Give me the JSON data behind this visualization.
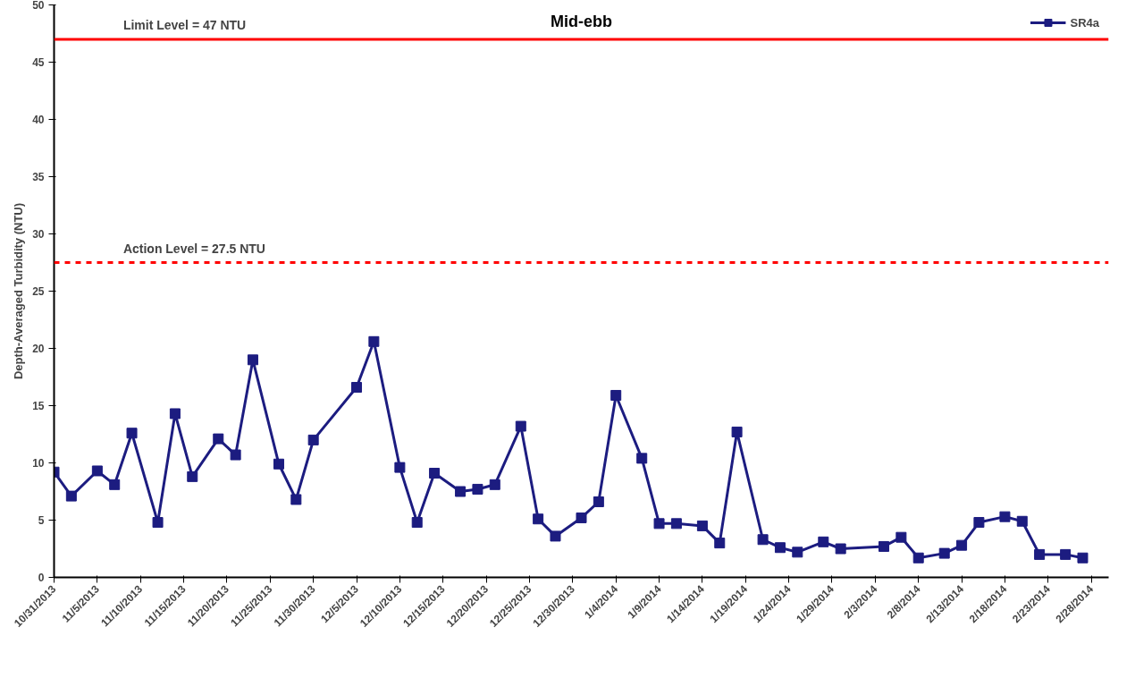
{
  "chart_data": {
    "type": "line",
    "title": "Mid-ebb",
    "ylabel": "Depth-Averaged Turbidity (NTU)",
    "x": [
      "2013-10-31",
      "2013-11-02",
      "2013-11-05",
      "2013-11-07",
      "2013-11-09",
      "2013-11-12",
      "2013-11-14",
      "2013-11-16",
      "2013-11-19",
      "2013-11-21",
      "2013-11-23",
      "2013-11-26",
      "2013-11-28",
      "2013-11-30",
      "2013-12-05",
      "2013-12-07",
      "2013-12-10",
      "2013-12-12",
      "2013-12-14",
      "2013-12-17",
      "2013-12-19",
      "2013-12-21",
      "2013-12-24",
      "2013-12-26",
      "2013-12-28",
      "2013-12-31",
      "2014-01-02",
      "2014-01-04",
      "2014-01-07",
      "2014-01-09",
      "2014-01-11",
      "2014-01-14",
      "2014-01-16",
      "2014-01-18",
      "2014-01-21",
      "2014-01-23",
      "2014-01-25",
      "2014-01-28",
      "2014-01-30",
      "2014-02-04",
      "2014-02-06",
      "2014-02-08",
      "2014-02-11",
      "2014-02-13",
      "2014-02-15",
      "2014-02-18",
      "2014-02-20",
      "2014-02-22",
      "2014-02-25",
      "2014-02-27"
    ],
    "series": [
      {
        "name": "SR4a",
        "color": "#1c1c80",
        "values": [
          9.2,
          7.1,
          9.3,
          8.1,
          12.6,
          4.8,
          14.3,
          8.8,
          12.1,
          10.7,
          19.0,
          9.9,
          6.8,
          12.0,
          16.6,
          20.6,
          9.6,
          4.8,
          9.1,
          7.5,
          7.7,
          8.1,
          13.2,
          5.1,
          3.6,
          5.2,
          6.6,
          15.9,
          10.4,
          4.7,
          4.7,
          4.5,
          3.0,
          12.7,
          3.3,
          2.6,
          2.2,
          3.1,
          2.5,
          2.7,
          3.5,
          1.7,
          2.1,
          2.8,
          4.8,
          5.3,
          4.9,
          2.0,
          2.0,
          1.7
        ]
      }
    ],
    "xlim": [
      "2013-10-31",
      "2014-03-02"
    ],
    "xticks": [
      {
        "value": "2013-10-31",
        "label": "10/31/2013"
      },
      {
        "value": "2013-11-05",
        "label": "11/5/2013"
      },
      {
        "value": "2013-11-10",
        "label": "11/10/2013"
      },
      {
        "value": "2013-11-15",
        "label": "11/15/2013"
      },
      {
        "value": "2013-11-20",
        "label": "11/20/2013"
      },
      {
        "value": "2013-11-25",
        "label": "11/25/2013"
      },
      {
        "value": "2013-11-30",
        "label": "11/30/2013"
      },
      {
        "value": "2013-12-05",
        "label": "12/5/2013"
      },
      {
        "value": "2013-12-10",
        "label": "12/10/2013"
      },
      {
        "value": "2013-12-15",
        "label": "12/15/2013"
      },
      {
        "value": "2013-12-20",
        "label": "12/20/2013"
      },
      {
        "value": "2013-12-25",
        "label": "12/25/2013"
      },
      {
        "value": "2013-12-30",
        "label": "12/30/2013"
      },
      {
        "value": "2014-01-04",
        "label": "1/4/2014"
      },
      {
        "value": "2014-01-09",
        "label": "1/9/2014"
      },
      {
        "value": "2014-01-14",
        "label": "1/14/2014"
      },
      {
        "value": "2014-01-19",
        "label": "1/19/2014"
      },
      {
        "value": "2014-01-24",
        "label": "1/24/2014"
      },
      {
        "value": "2014-01-29",
        "label": "1/29/2014"
      },
      {
        "value": "2014-02-03",
        "label": "2/3/2014"
      },
      {
        "value": "2014-02-08",
        "label": "2/8/2014"
      },
      {
        "value": "2014-02-13",
        "label": "2/13/2014"
      },
      {
        "value": "2014-02-18",
        "label": "2/18/2014"
      },
      {
        "value": "2014-02-23",
        "label": "2/23/2014"
      },
      {
        "value": "2014-02-28",
        "label": "2/28/2014"
      }
    ],
    "ylim": [
      0,
      50
    ],
    "yticks": [
      0,
      5,
      10,
      15,
      20,
      25,
      30,
      35,
      40,
      45,
      50
    ],
    "ref_lines": [
      {
        "axis": "y",
        "value": 47,
        "label": "Limit Level = 47 NTU",
        "color": "#ff0000",
        "line_style": "solid"
      },
      {
        "axis": "y",
        "value": 27.5,
        "label": "Action Level = 27.5 NTU",
        "color": "#ff0000",
        "line_style": "dashed"
      }
    ],
    "marker": "square",
    "line_style": "solid",
    "grid": false,
    "legend": "top right"
  }
}
